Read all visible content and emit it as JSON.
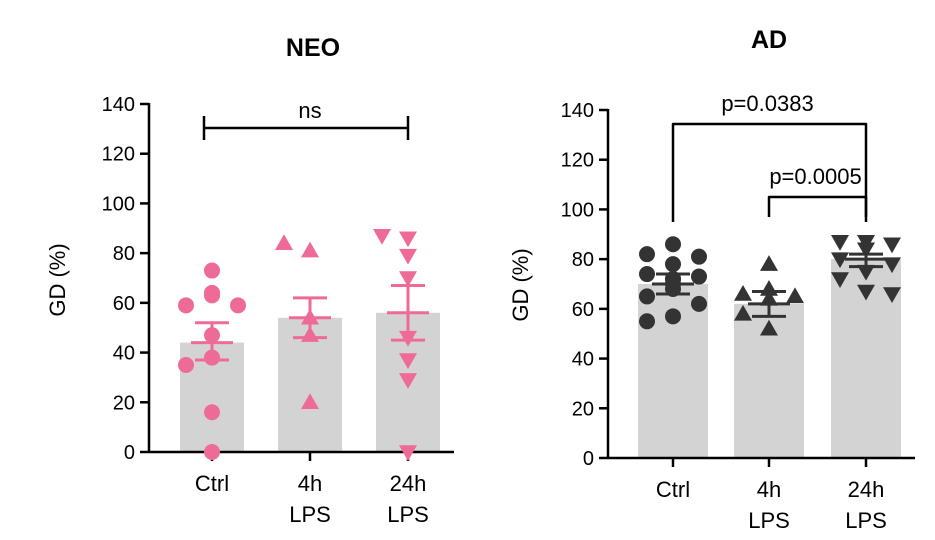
{
  "chart_data": [
    {
      "type": "bar",
      "panel": "NEO",
      "title": "NEO",
      "ylabel": "GD (%)",
      "ylim": [
        0,
        140
      ],
      "yticks": [
        0,
        20,
        40,
        60,
        80,
        100,
        120,
        140
      ],
      "categories": [
        [
          "Ctrl"
        ],
        [
          "4h",
          "LPS"
        ],
        [
          "24h",
          "LPS"
        ]
      ],
      "point_color": "#ef6b97",
      "markers": [
        "circle",
        "triangle-up",
        "triangle-down"
      ],
      "means": [
        44,
        54,
        56
      ],
      "sem_low": [
        37,
        46,
        45
      ],
      "sem_high": [
        52,
        62,
        67
      ],
      "points": [
        [
          73,
          64,
          59,
          59,
          63,
          47,
          38,
          35,
          16,
          0
        ],
        [
          81,
          84,
          54,
          47,
          20
        ],
        [
          86,
          87,
          79,
          70,
          46,
          37,
          29,
          0
        ]
      ],
      "significance": [
        {
          "from": 0,
          "to": 2,
          "label": "ns"
        }
      ]
    },
    {
      "type": "bar",
      "panel": "AD",
      "title": "AD",
      "ylabel": "GD (%)",
      "ylim": [
        0,
        140
      ],
      "yticks": [
        0,
        20,
        40,
        60,
        80,
        100,
        120,
        140
      ],
      "categories": [
        [
          "Ctrl"
        ],
        [
          "4h",
          "LPS"
        ],
        [
          "24h",
          "LPS"
        ]
      ],
      "point_color": "#333333",
      "markers": [
        "circle",
        "triangle-up",
        "triangle-down"
      ],
      "means": [
        70,
        62,
        80
      ],
      "sem_low": [
        66,
        57,
        77
      ],
      "sem_high": [
        74,
        67,
        82
      ],
      "points": [
        [
          86,
          82,
          81,
          78,
          74,
          73,
          72,
          72,
          70,
          68,
          65,
          62,
          57,
          55
        ],
        [
          78,
          68,
          66,
          65,
          64,
          58,
          52
        ],
        [
          87,
          87,
          86,
          84,
          80,
          78,
          75,
          72,
          67,
          66
        ]
      ],
      "significance": [
        {
          "from": 0,
          "to": 2,
          "label": "p=0.0383"
        },
        {
          "from": 1,
          "to": 2,
          "label": "p=0.0005"
        }
      ]
    }
  ]
}
